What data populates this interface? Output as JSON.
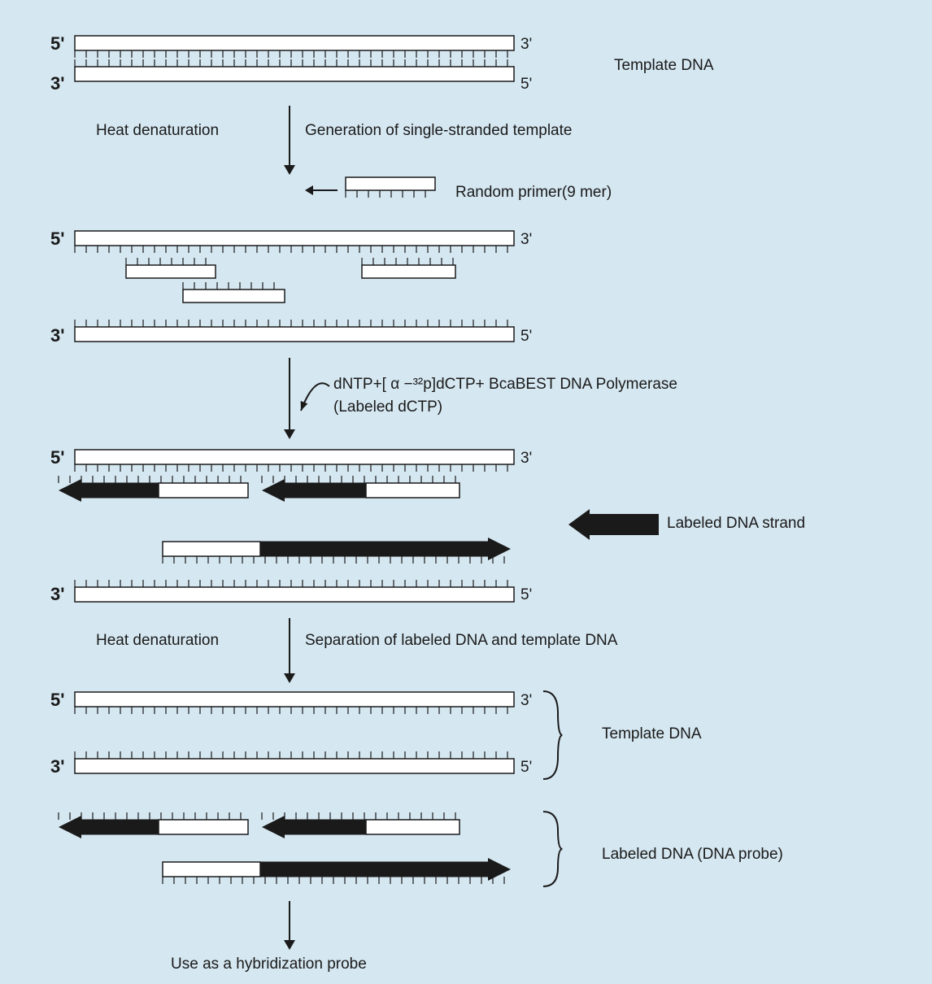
{
  "bg_color": "#d5e7f1",
  "stroke": "#1a1a1a",
  "fill_white": "#ffffff",
  "fill_black": "#1a1a1a",
  "text": {
    "template_dna": "Template DNA",
    "heat_denat": "Heat denaturation",
    "gen_single": "Generation of single-stranded template",
    "random_primer": "Random primer(9 mer)",
    "dntp_line1": "dNTP+[ α −³²p]dCTP+  BcaBEST DNA Polymerase",
    "dntp_line2": "(Labeled dCTP)",
    "labeled_strand": "Labeled DNA strand",
    "separation": "Separation of labeled DNA and template DNA",
    "labeled_probe": "Labeled DNA (DNA probe)",
    "use_as": "Use as a hybridization probe",
    "p5": "5'",
    "p3": "3'",
    "p5b": "5'",
    "p3b": "3'"
  },
  "italic": {
    "bca": "Bca"
  },
  "geom": {
    "strand_len": 540,
    "strand_h": 18,
    "tick_h": 9,
    "tick_gap": 14,
    "primer_len": 110,
    "primer_h": 16,
    "arrow_head_w": 28,
    "arrow_shaft_h": 18,
    "thick_arrow_len": 80,
    "thick_arrow_h": 24
  }
}
